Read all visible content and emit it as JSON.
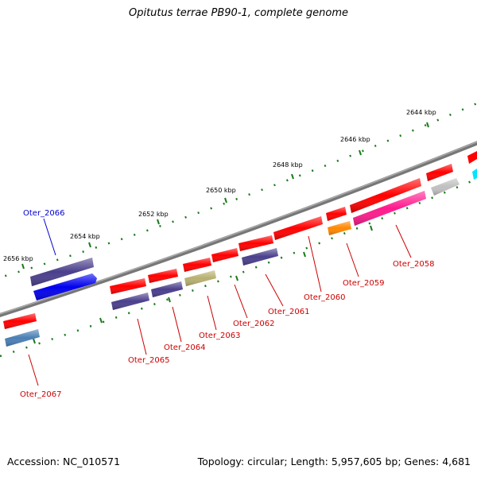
{
  "title": "Opitutus terrae PB90-1, complete genome",
  "footer": {
    "accession": "Accession: NC_010571",
    "topology": "Topology: circular; Length: 5,957,605 bp; Genes: 4,681"
  },
  "ruler": {
    "labels": [
      "2644 kbp",
      "2646 kbp",
      "2648 kbp",
      "2650 kbp",
      "2652 kbp",
      "2654 kbp",
      "2656 kbp"
    ]
  },
  "genes": [
    {
      "name": "Oter_2058",
      "color": "#cc0000"
    },
    {
      "name": "Oter_2059",
      "color": "#cc0000"
    },
    {
      "name": "Oter_2060",
      "color": "#cc0000"
    },
    {
      "name": "Oter_2061",
      "color": "#cc0000"
    },
    {
      "name": "Oter_2062",
      "color": "#cc0000"
    },
    {
      "name": "Oter_2063",
      "color": "#cc0000"
    },
    {
      "name": "Oter_2064",
      "color": "#cc0000"
    },
    {
      "name": "Oter_2065",
      "color": "#cc0000"
    },
    {
      "name": "Oter_2066",
      "color": "#0000cc"
    },
    {
      "name": "Oter_2067",
      "color": "#cc0000"
    }
  ],
  "colors": {
    "red": "#ff0000",
    "purple": "#4a3f8c",
    "blue": "#0000ee",
    "steel": "#4a7fb5",
    "khaki": "#b8b070",
    "orange": "#ff8800",
    "pink": "#ff1a8c",
    "grey": "#c0c0c0",
    "cyan": "#00e5ff",
    "backbone": "#808080",
    "tick": "#1a7a1a"
  }
}
